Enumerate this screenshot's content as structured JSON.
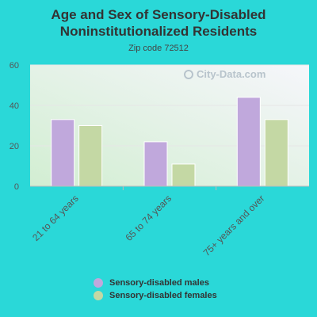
{
  "header": {
    "title_line1": "Age and Sex of Sensory-Disabled",
    "title_line2": "Noninstitutionalized Residents",
    "subtitle": "Zip code 72512"
  },
  "watermark": {
    "text": "City-Data.com",
    "icon": "city-data-logo-icon"
  },
  "colors": {
    "page_background": "#2ad8d8",
    "males": "#c0a8dc",
    "females": "#c4d8a4"
  },
  "chart_data": {
    "type": "bar",
    "title": "Age and Sex of Sensory-Disabled Noninstitutionalized Residents",
    "subtitle": "Zip code 72512",
    "categories": [
      "21 to 64 years",
      "65 to 74 years",
      "75+ years and over"
    ],
    "series": [
      {
        "name": "Sensory-disabled males",
        "values": [
          33,
          22,
          44
        ],
        "color": "#c0a8dc"
      },
      {
        "name": "Sensory-disabled females",
        "values": [
          30,
          11,
          33
        ],
        "color": "#c4d8a4"
      }
    ],
    "ylim": [
      0,
      60
    ],
    "yticks": [
      "0",
      "20",
      "40",
      "60"
    ],
    "xlabel": "",
    "ylabel": "",
    "grid": true,
    "legend_position": "bottom"
  }
}
